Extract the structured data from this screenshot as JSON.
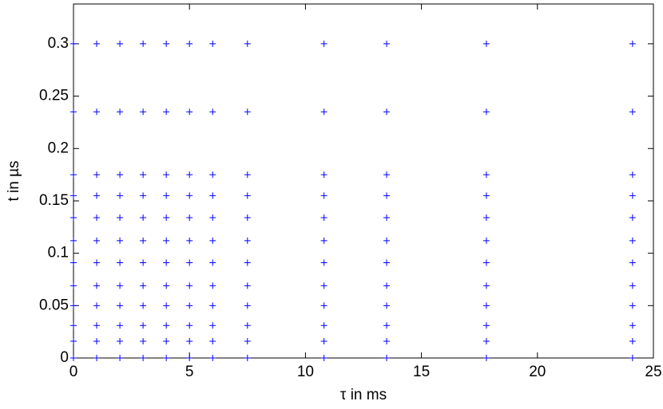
{
  "chart_data": {
    "type": "scatter",
    "xlabel": "τ in ms",
    "ylabel": "t in µs",
    "color": "#0000ff",
    "marker": "+",
    "xlim": [
      0,
      25
    ],
    "ylim": [
      0,
      0.338
    ],
    "xticks": [
      0,
      5,
      10,
      15,
      20,
      25
    ],
    "yticks": [
      0,
      0.05,
      0.1,
      0.15,
      0.2,
      0.25,
      0.3
    ],
    "grid": false,
    "x": [
      0,
      0,
      0,
      0,
      0,
      0,
      0,
      0,
      0,
      0,
      0,
      0,
      1,
      1,
      1,
      1,
      1,
      1,
      1,
      1,
      1,
      1,
      1,
      1,
      2,
      2,
      2,
      2,
      2,
      2,
      2,
      2,
      2,
      2,
      2,
      2,
      3,
      3,
      3,
      3,
      3,
      3,
      3,
      3,
      3,
      3,
      3,
      3,
      4,
      4,
      4,
      4,
      4,
      4,
      4,
      4,
      4,
      4,
      4,
      4,
      5,
      5,
      5,
      5,
      5,
      5,
      5,
      5,
      5,
      5,
      5,
      5,
      6,
      6,
      6,
      6,
      6,
      6,
      6,
      6,
      6,
      6,
      6,
      6,
      7.5,
      7.5,
      7.5,
      7.5,
      7.5,
      7.5,
      7.5,
      7.5,
      7.5,
      7.5,
      7.5,
      7.5,
      10.8,
      10.8,
      10.8,
      10.8,
      10.8,
      10.8,
      10.8,
      10.8,
      10.8,
      10.8,
      10.8,
      10.8,
      13.5,
      13.5,
      13.5,
      13.5,
      13.5,
      13.5,
      13.5,
      13.5,
      13.5,
      13.5,
      13.5,
      13.5,
      17.8,
      17.8,
      17.8,
      17.8,
      17.8,
      17.8,
      17.8,
      17.8,
      17.8,
      17.8,
      17.8,
      17.8,
      24.1,
      24.1,
      24.1,
      24.1,
      24.1,
      24.1,
      24.1,
      24.1,
      24.1,
      24.1,
      24.1,
      24.1
    ],
    "y": [
      0,
      0.016,
      0.031,
      0.05,
      0.069,
      0.091,
      0.112,
      0.134,
      0.155,
      0.175,
      0.235,
      0.3,
      0,
      0.016,
      0.031,
      0.05,
      0.069,
      0.091,
      0.112,
      0.134,
      0.155,
      0.175,
      0.235,
      0.3,
      0,
      0.016,
      0.031,
      0.05,
      0.069,
      0.091,
      0.112,
      0.134,
      0.155,
      0.175,
      0.235,
      0.3,
      0,
      0.016,
      0.031,
      0.05,
      0.069,
      0.091,
      0.112,
      0.134,
      0.155,
      0.175,
      0.235,
      0.3,
      0,
      0.016,
      0.031,
      0.05,
      0.069,
      0.091,
      0.112,
      0.134,
      0.155,
      0.175,
      0.235,
      0.3,
      0,
      0.016,
      0.031,
      0.05,
      0.069,
      0.091,
      0.112,
      0.134,
      0.155,
      0.175,
      0.235,
      0.3,
      0,
      0.016,
      0.031,
      0.05,
      0.069,
      0.091,
      0.112,
      0.134,
      0.155,
      0.175,
      0.235,
      0.3,
      0,
      0.016,
      0.031,
      0.05,
      0.069,
      0.091,
      0.112,
      0.134,
      0.155,
      0.175,
      0.235,
      0.3,
      0,
      0.016,
      0.031,
      0.05,
      0.069,
      0.091,
      0.112,
      0.134,
      0.155,
      0.175,
      0.235,
      0.3,
      0,
      0.016,
      0.031,
      0.05,
      0.069,
      0.091,
      0.112,
      0.134,
      0.155,
      0.175,
      0.235,
      0.3,
      0,
      0.016,
      0.031,
      0.05,
      0.069,
      0.091,
      0.112,
      0.134,
      0.155,
      0.175,
      0.235,
      0.3,
      0,
      0.016,
      0.031,
      0.05,
      0.069,
      0.091,
      0.112,
      0.134,
      0.155,
      0.175,
      0.235,
      0.3
    ]
  }
}
